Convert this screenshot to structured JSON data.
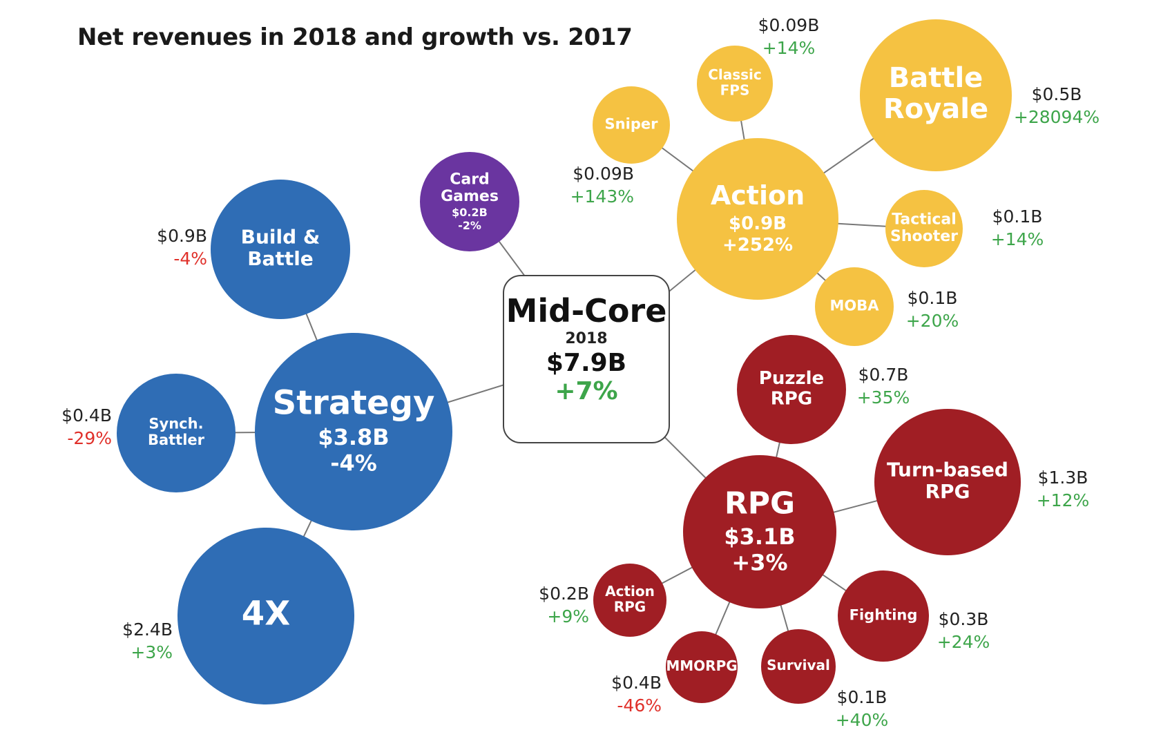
{
  "title": "Net revenues in 2018 and growth vs. 2017",
  "colors": {
    "strategy": "#2f6db5",
    "card": "#6a35a0",
    "action": "#f5c242",
    "rpg": "#a01e24",
    "positive": "#3da54a",
    "negative": "#e0302a",
    "value": "#222222",
    "line": "#777777"
  },
  "center": {
    "name": "Mid-Core",
    "year": "2018",
    "value": "$7.9B",
    "growth": "+7%"
  },
  "chart_data": {
    "type": "bubble-hierarchy",
    "title": "Net revenues in 2018 and growth vs. 2017",
    "root": {
      "name": "Mid-Core",
      "year": "2018",
      "revenue_usd_b": 7.9,
      "growth_pct": 7
    },
    "genres": [
      {
        "id": "strategy",
        "name": [
          "Strategy"
        ],
        "value": "$3.8B",
        "growth": "-4%",
        "revenue_usd_b": 3.8,
        "growth_pct": -4,
        "color": "strategy",
        "subgenres": [
          {
            "id": "build-battle",
            "name": [
              "Build &",
              "Battle"
            ],
            "value": "$0.9B",
            "growth": "-4%",
            "revenue_usd_b": 0.9,
            "growth_pct": -4
          },
          {
            "id": "synch-battler",
            "name": [
              "Synch.",
              "Battler"
            ],
            "value": "$0.4B",
            "growth": "-29%",
            "revenue_usd_b": 0.4,
            "growth_pct": -29
          },
          {
            "id": "4x",
            "name": [
              "4X"
            ],
            "value": "$2.4B",
            "growth": "+3%",
            "revenue_usd_b": 2.4,
            "growth_pct": 3
          }
        ]
      },
      {
        "id": "card-games",
        "name": [
          "Card",
          "Games"
        ],
        "value": "$0.2B",
        "growth": "-2%",
        "revenue_usd_b": 0.2,
        "growth_pct": -2,
        "color": "card",
        "subgenres": []
      },
      {
        "id": "action",
        "name": [
          "Action"
        ],
        "value": "$0.9B",
        "growth": "+252%",
        "revenue_usd_b": 0.9,
        "growth_pct": 252,
        "color": "action",
        "subgenres": [
          {
            "id": "sniper",
            "name": [
              "Sniper"
            ],
            "value": "$0.09B",
            "growth": "+143%",
            "revenue_usd_b": 0.09,
            "growth_pct": 143
          },
          {
            "id": "classic-fps",
            "name": [
              "Classic",
              "FPS"
            ],
            "value": "$0.09B",
            "growth": "+14%",
            "revenue_usd_b": 0.09,
            "growth_pct": 14
          },
          {
            "id": "battle-royale",
            "name": [
              "Battle",
              "Royale"
            ],
            "value": "$0.5B",
            "growth": "+28094%",
            "revenue_usd_b": 0.5,
            "growth_pct": 28094
          },
          {
            "id": "tactical-shooter",
            "name": [
              "Tactical",
              "Shooter"
            ],
            "value": "$0.1B",
            "growth": "+14%",
            "revenue_usd_b": 0.1,
            "growth_pct": 14
          },
          {
            "id": "moba",
            "name": [
              "MOBA"
            ],
            "value": "$0.1B",
            "growth": "+20%",
            "revenue_usd_b": 0.1,
            "growth_pct": 20
          }
        ]
      },
      {
        "id": "rpg",
        "name": [
          "RPG"
        ],
        "value": "$3.1B",
        "growth": "+3%",
        "revenue_usd_b": 3.1,
        "growth_pct": 3,
        "color": "rpg",
        "subgenres": [
          {
            "id": "puzzle-rpg",
            "name": [
              "Puzzle",
              "RPG"
            ],
            "value": "$0.7B",
            "growth": "+35%",
            "revenue_usd_b": 0.7,
            "growth_pct": 35
          },
          {
            "id": "turn-based-rpg",
            "name": [
              "Turn-based",
              "RPG"
            ],
            "value": "$1.3B",
            "growth": "+12%",
            "revenue_usd_b": 1.3,
            "growth_pct": 12
          },
          {
            "id": "fighting",
            "name": [
              "Fighting"
            ],
            "value": "$0.3B",
            "growth": "+24%",
            "revenue_usd_b": 0.3,
            "growth_pct": 24
          },
          {
            "id": "survival",
            "name": [
              "Survival"
            ],
            "value": "$0.1B",
            "growth": "+40%",
            "revenue_usd_b": 0.1,
            "growth_pct": 40
          },
          {
            "id": "mmorpg",
            "name": [
              "MMORPG"
            ],
            "value": "$0.4B",
            "growth": "-46%",
            "revenue_usd_b": 0.4,
            "growth_pct": -46
          },
          {
            "id": "action-rpg",
            "name": [
              "Action",
              "RPG"
            ],
            "value": "$0.2B",
            "growth": "+9%",
            "revenue_usd_b": 0.2,
            "growth_pct": 9
          }
        ]
      }
    ]
  }
}
